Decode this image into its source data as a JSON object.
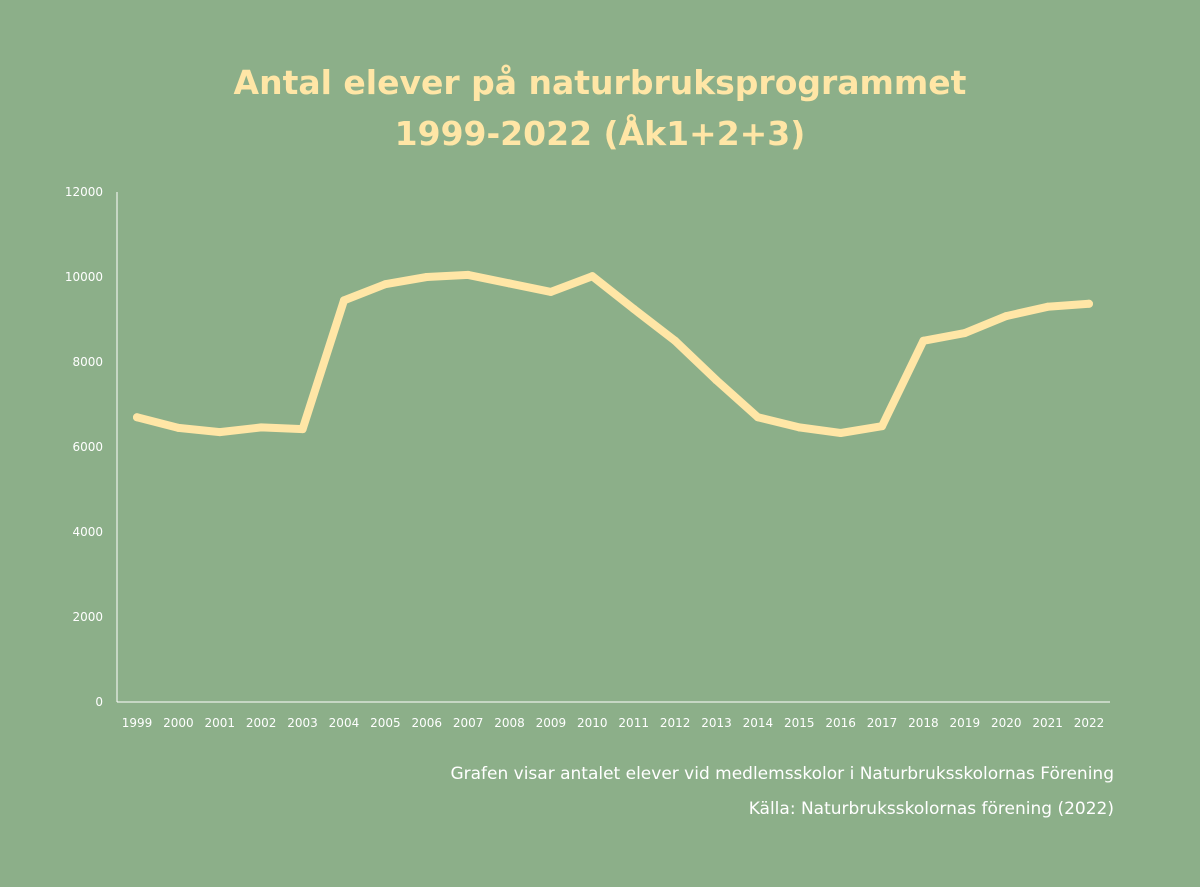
{
  "title": {
    "line1": "Antal elever på naturbruksprogrammet",
    "line2": "1999-2022 (Åk1+2+3)"
  },
  "notes": {
    "description": "Grafen visar antalet elever vid medlemsskolor i Naturbruksskolornas Förening",
    "source": "Källa: Naturbruksskolornas förening (2022)"
  },
  "colors": {
    "background": "#8caf89",
    "line": "#ffe6a6",
    "axis": "#ffffff",
    "title": "#ffe6a6"
  },
  "chart_data": {
    "type": "line",
    "x": [
      "1999",
      "2000",
      "2001",
      "2002",
      "2003",
      "2004",
      "2005",
      "2006",
      "2007",
      "2008",
      "2009",
      "2010",
      "2011",
      "2012",
      "2013",
      "2014",
      "2015",
      "2016",
      "2017",
      "2018",
      "2019",
      "2020",
      "2021",
      "2022"
    ],
    "series": [
      {
        "values": [
          6700,
          6450,
          6350,
          6460,
          6420,
          9450,
          9830,
          10000,
          10050,
          9850,
          9650,
          10020,
          9250,
          8500,
          7570,
          6700,
          6460,
          6330,
          6490,
          8500,
          8680,
          9080,
          9300,
          9370
        ]
      }
    ],
    "yticks": [
      "0",
      "2000",
      "4000",
      "6000",
      "8000",
      "10000",
      "12000"
    ],
    "ylim": [
      0,
      12000
    ],
    "grid": false,
    "legend": "none"
  }
}
